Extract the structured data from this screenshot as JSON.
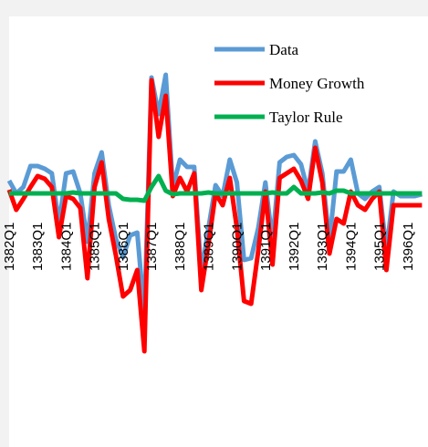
{
  "chart_data": {
    "type": "line",
    "categories": [
      "1382Q1",
      null,
      null,
      null,
      "1383Q1",
      null,
      null,
      null,
      "1384Q1",
      null,
      null,
      null,
      "1385Q1",
      null,
      null,
      null,
      "1386Q1",
      null,
      null,
      null,
      "1387Q1",
      null,
      null,
      null,
      "1388Q1",
      null,
      null,
      null,
      "1389Q1",
      null,
      null,
      null,
      "1390Q1",
      null,
      null,
      null,
      "1391Q1",
      null,
      null,
      null,
      "1392Q1",
      null,
      null,
      null,
      "1393Q1",
      null,
      null,
      null,
      "1394Q1",
      null,
      null,
      null,
      "1395Q1",
      null,
      null,
      null,
      "1396Q1",
      null,
      null
    ],
    "ylim": [
      -27,
      19
    ],
    "series": [
      {
        "name": "Data",
        "color": "#5b9bd5",
        "values": [
          1.4,
          0,
          0.7,
          3,
          3,
          2.7,
          2.2,
          -3.3,
          2.2,
          2.4,
          0,
          -5.3,
          2.2,
          4.5,
          -1.3,
          -5,
          -7,
          -4.6,
          -4.3,
          -13.3,
          12.7,
          8.7,
          13,
          0.7,
          3.7,
          2.9,
          2.9,
          -8.8,
          -3.8,
          0.9,
          -0.3,
          3.7,
          1.2,
          -7.3,
          -7.1,
          -3.8,
          1.2,
          -5.3,
          3.4,
          4,
          4.2,
          3.2,
          0.2,
          5.7,
          2.2,
          -5.3,
          2.4,
          2.4,
          3.7,
          0,
          -0.6,
          0.2,
          0.7,
          -6.3,
          0.2,
          -0.3,
          -0.3,
          -0.3,
          -0.1
        ]
      },
      {
        "name": "Money Growth",
        "color": "#ff0000",
        "values": [
          0.4,
          -1.8,
          -0.6,
          0.7,
          1.9,
          1.6,
          0.7,
          -4.8,
          -0.3,
          -0.6,
          -1.6,
          -9.3,
          0.7,
          3.4,
          -2.8,
          -6.8,
          -11.3,
          -10.6,
          -8.4,
          -17.3,
          12.4,
          6.2,
          10.7,
          -0.3,
          1.7,
          0.2,
          2.2,
          -10.6,
          -5.6,
          0,
          -1.3,
          1.7,
          -3.8,
          -11.8,
          -12.1,
          -6.3,
          0.2,
          -7.8,
          1.7,
          2.2,
          2.7,
          1.4,
          -0.6,
          5,
          1.2,
          -6.6,
          -2.8,
          -3.3,
          0.2,
          -1.3,
          -1.8,
          -0.6,
          0.2,
          -8.4,
          -1.3,
          -1.3,
          -1.3,
          -1.3,
          -1.3
        ]
      },
      {
        "name": "Taylor Rule",
        "color": "#00b050",
        "values": [
          0,
          0,
          0,
          0,
          0,
          0,
          0,
          0,
          0,
          0.1,
          0,
          0,
          0,
          0,
          0,
          0,
          -0.6,
          -0.7,
          -0.7,
          -0.8,
          0.7,
          1.9,
          0.3,
          -0.1,
          0,
          0,
          0,
          0,
          0.1,
          0,
          0,
          0,
          0,
          0,
          0,
          0,
          0,
          0.1,
          0,
          0,
          0.7,
          0,
          0,
          0,
          0.1,
          0,
          0.3,
          0.3,
          0,
          0,
          0,
          0,
          0,
          0,
          0,
          0,
          0,
          0,
          0
        ]
      }
    ]
  }
}
